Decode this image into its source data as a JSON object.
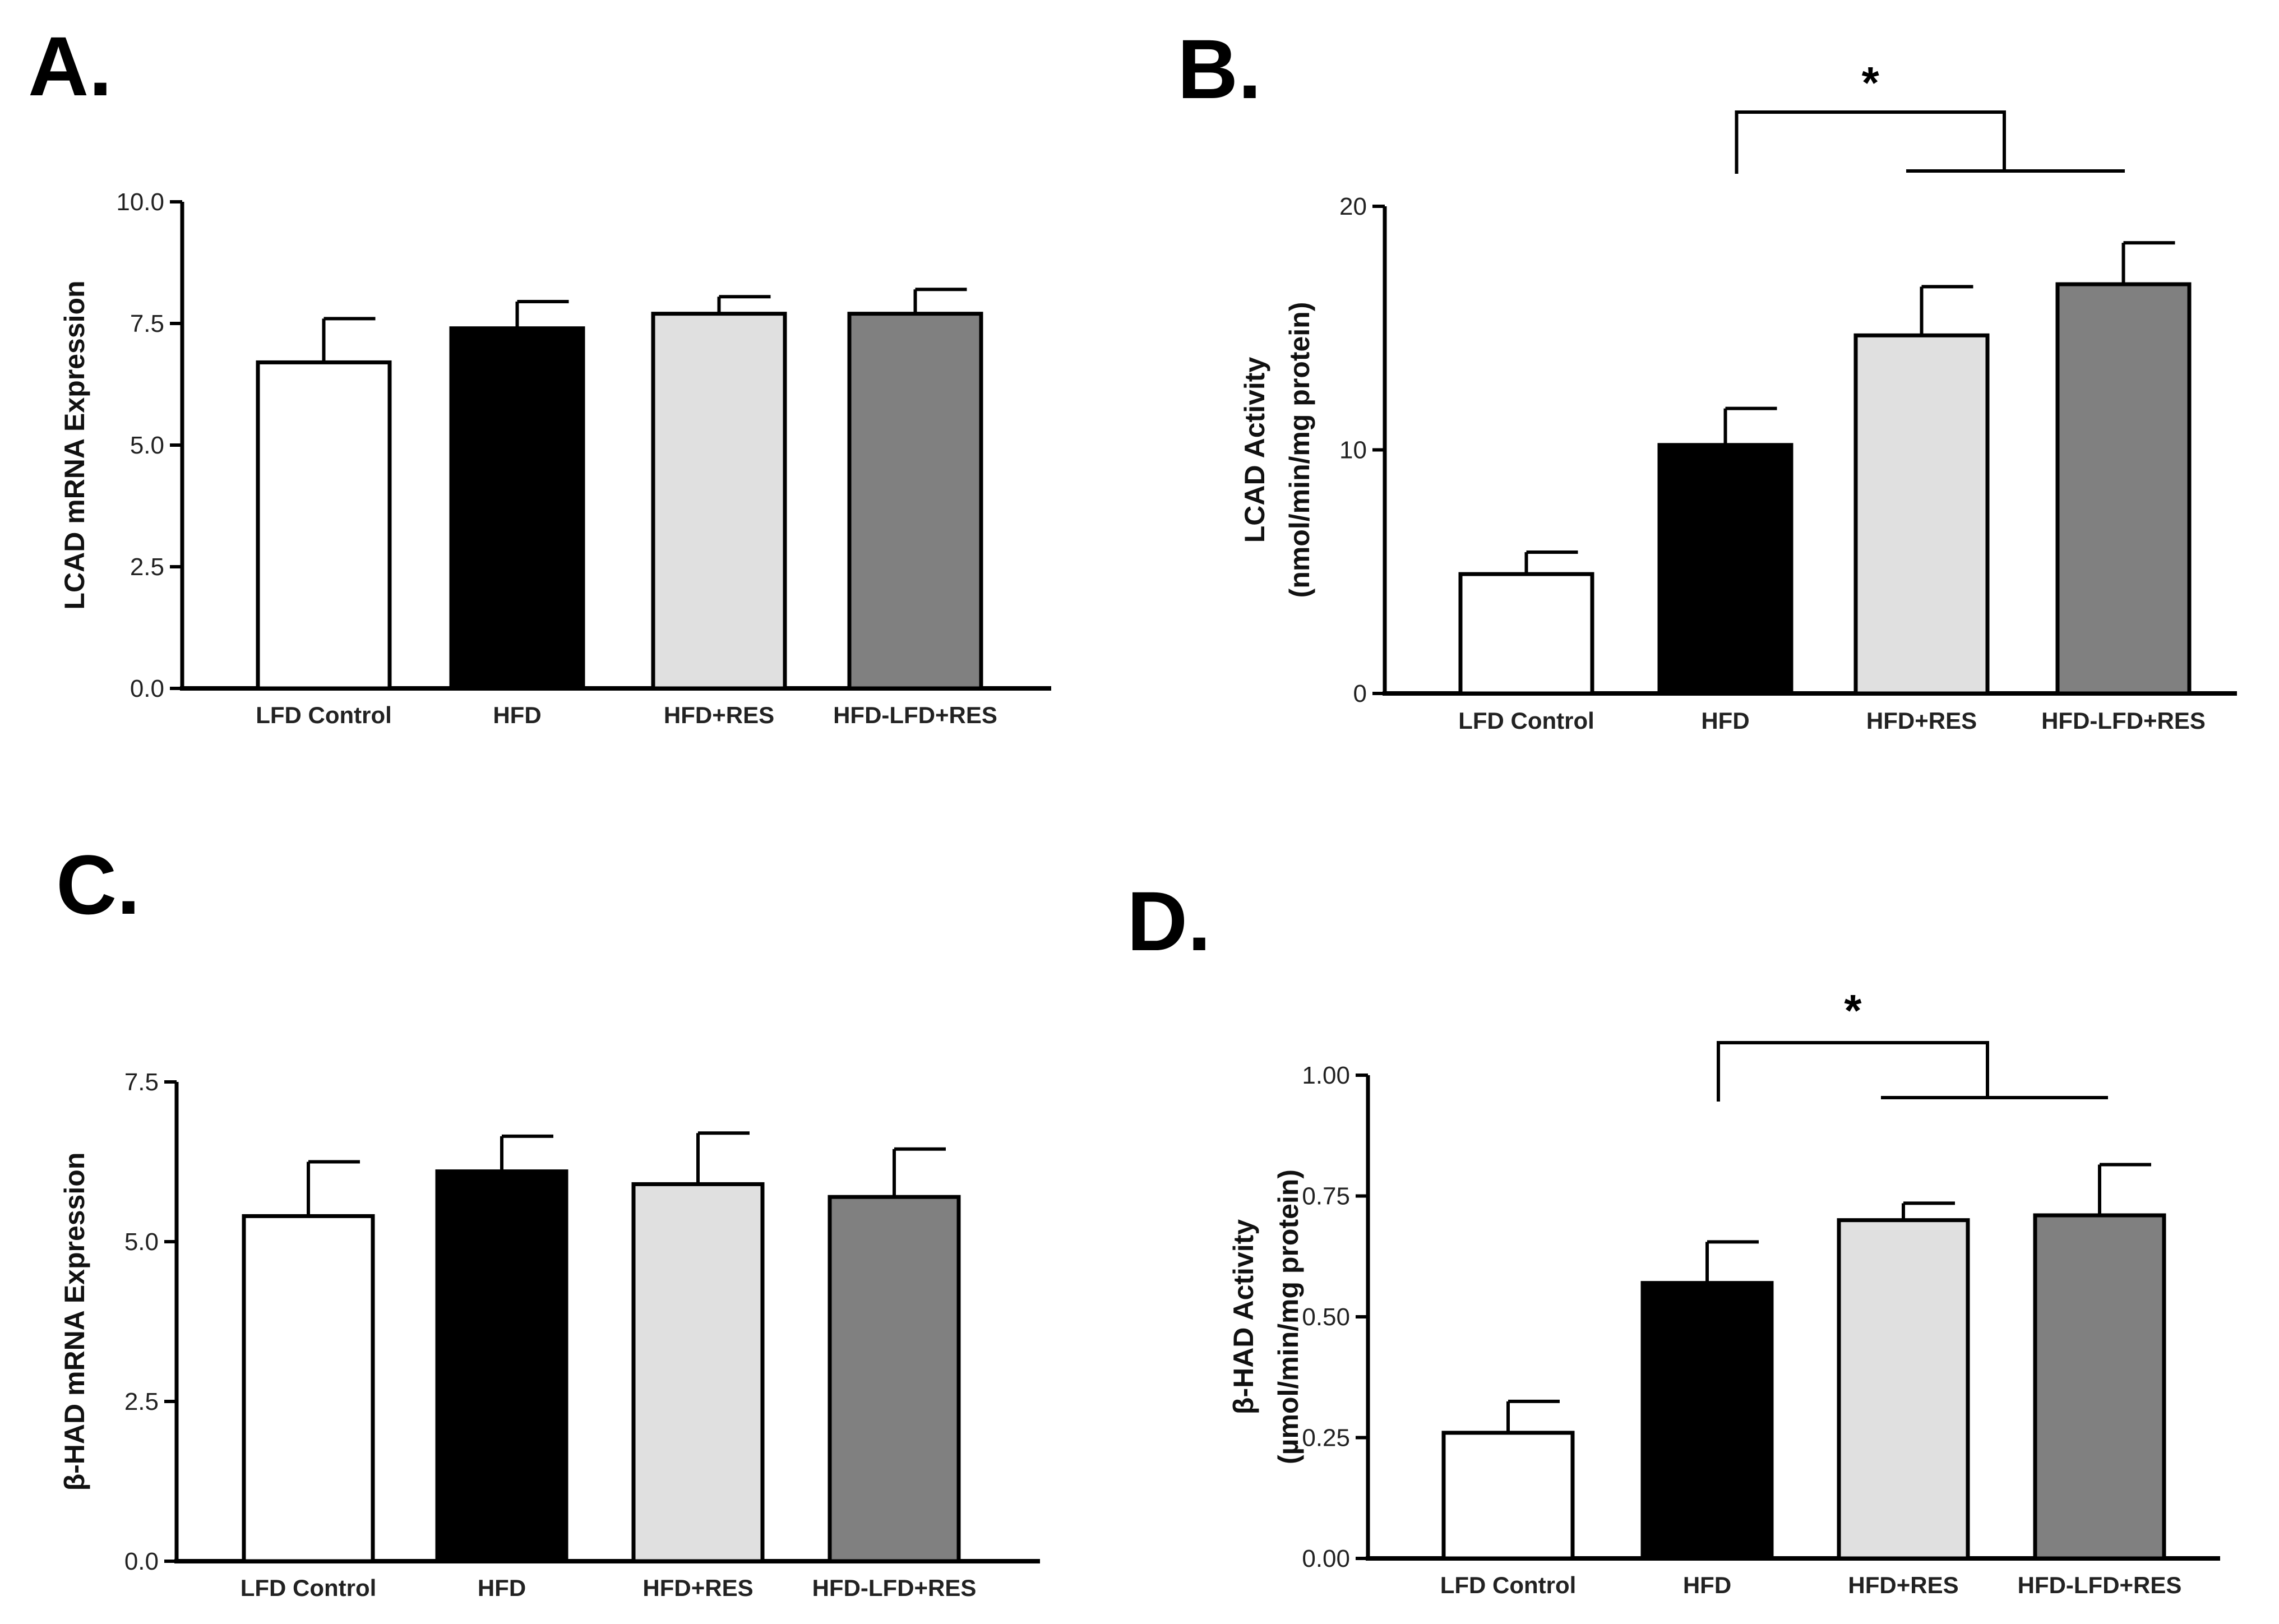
{
  "figure": {
    "bar_colors": [
      "#ffffff",
      "#000000",
      "#e0e0e0",
      "#808080"
    ]
  },
  "chart_data": [
    {
      "id": "A",
      "panel_label": "A.",
      "type": "bar",
      "categories": [
        "LFD Control",
        "HFD",
        "HFD+RES",
        "HFD-LFD+RES"
      ],
      "values": [
        6.7,
        7.4,
        7.7,
        7.7
      ],
      "errors": [
        0.9,
        0.55,
        0.35,
        0.5
      ],
      "ylabel": [
        "LCAD mRNA Expression"
      ],
      "ylim": [
        0,
        10
      ],
      "yticks": [
        0,
        2.5,
        5,
        7.5,
        10
      ],
      "ytick_labels": [
        "0.0",
        "2.5",
        "5.0",
        "7.5",
        "10.0"
      ],
      "significance": null
    },
    {
      "id": "B",
      "panel_label": "B.",
      "type": "bar",
      "categories": [
        "LFD Control",
        "HFD",
        "HFD+RES",
        "HFD-LFD+RES"
      ],
      "values": [
        4.9,
        10.2,
        14.7,
        16.8
      ],
      "errors": [
        0.9,
        1.5,
        2.0,
        1.7
      ],
      "ylabel": [
        "LCAD Activity",
        "(nmol/min/mg protein)"
      ],
      "ylim": [
        0,
        20
      ],
      "yticks": [
        0,
        10,
        20
      ],
      "ytick_labels": [
        "0",
        "10",
        "20"
      ],
      "significance": {
        "label": "*",
        "group_from": "HFD",
        "group_to": [
          "HFD+RES",
          "HFD-LFD+RES"
        ]
      }
    },
    {
      "id": "C",
      "panel_label": "C.",
      "type": "bar",
      "categories": [
        "LFD Control",
        "HFD",
        "HFD+RES",
        "HFD-LFD+RES"
      ],
      "values": [
        5.4,
        6.1,
        5.9,
        5.7
      ],
      "errors": [
        0.85,
        0.55,
        0.8,
        0.75
      ],
      "ylabel": [
        "β-HAD mRNA Expression"
      ],
      "ylim": [
        0,
        7.5
      ],
      "yticks": [
        0,
        2.5,
        5,
        7.5
      ],
      "ytick_labels": [
        "0.0",
        "2.5",
        "5.0",
        "7.5"
      ],
      "significance": null
    },
    {
      "id": "D",
      "panel_label": "D.",
      "type": "bar",
      "categories": [
        "LFD Control",
        "HFD",
        "HFD+RES",
        "HFD-LFD+RES"
      ],
      "values": [
        0.26,
        0.57,
        0.7,
        0.71
      ],
      "errors": [
        0.065,
        0.085,
        0.035,
        0.105
      ],
      "ylabel": [
        "β-HAD Activity",
        "(µmol/min/mg protein)"
      ],
      "ylim": [
        0,
        1
      ],
      "yticks": [
        0,
        0.25,
        0.5,
        0.75,
        1
      ],
      "ytick_labels": [
        "0.00",
        "0.25",
        "0.50",
        "0.75",
        "1.00"
      ],
      "significance": {
        "label": "*",
        "group_from": "HFD",
        "group_to": [
          "HFD+RES",
          "HFD-LFD+RES"
        ]
      }
    }
  ]
}
